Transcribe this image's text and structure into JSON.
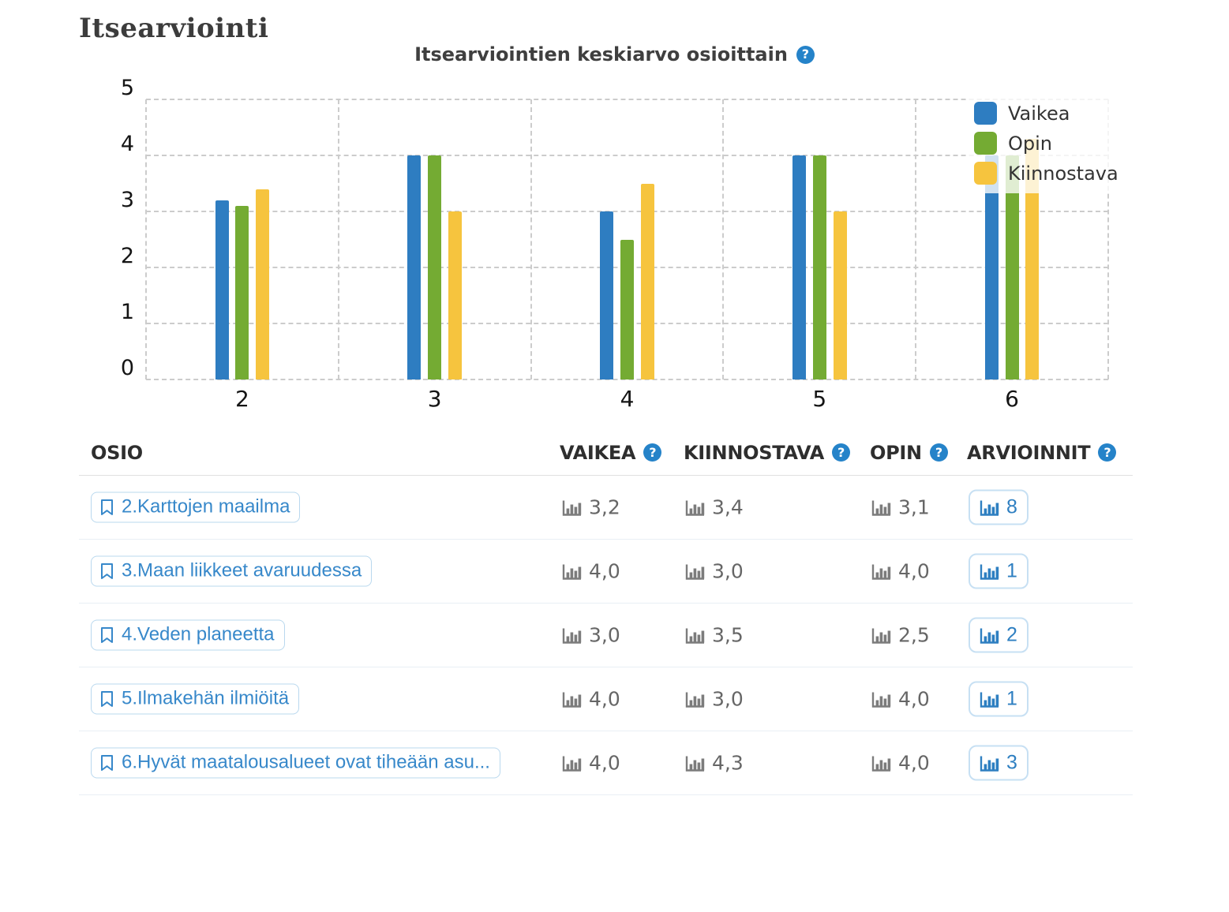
{
  "page": {
    "title": "Itsearviointi"
  },
  "chart_data": {
    "type": "bar",
    "title": "Itsearviointien keskiarvo osioittain",
    "categories": [
      "2",
      "3",
      "4",
      "5",
      "6"
    ],
    "series": [
      {
        "name": "Vaikea",
        "color": "#2e7dc1",
        "values": [
          3.2,
          4.0,
          3.0,
          4.0,
          4.0
        ]
      },
      {
        "name": "Opin",
        "color": "#74ab33",
        "values": [
          3.1,
          4.0,
          2.5,
          4.0,
          4.0
        ]
      },
      {
        "name": "Kiinnostava",
        "color": "#f6c43e",
        "values": [
          3.4,
          3.0,
          3.5,
          3.0,
          4.3
        ]
      }
    ],
    "xlabel": "",
    "ylabel": "",
    "ylim": [
      0,
      5
    ],
    "yticks": [
      0,
      1,
      2,
      3,
      4,
      5
    ],
    "grid": "dashed",
    "legend_position": "top-right-overlay"
  },
  "table": {
    "headers": {
      "osio": "OSIO",
      "vaikea": "VAIKEA",
      "kiinnostava": "KIINNOSTAVA",
      "opin": "OPIN",
      "arvioinnit": "ARVIOINNIT"
    },
    "rows": [
      {
        "label": "2.Karttojen maailma",
        "vaikea": "3,2",
        "kiinnostava": "3,4",
        "opin": "3,1",
        "arvioinnit": "8"
      },
      {
        "label": "3.Maan liikkeet avaruudessa",
        "vaikea": "4,0",
        "kiinnostava": "3,0",
        "opin": "4,0",
        "arvioinnit": "1"
      },
      {
        "label": "4.Veden planeetta",
        "vaikea": "3,0",
        "kiinnostava": "3,5",
        "opin": "2,5",
        "arvioinnit": "2"
      },
      {
        "label": "5.Ilmakehän ilmiöitä",
        "vaikea": "4,0",
        "kiinnostava": "3,0",
        "opin": "4,0",
        "arvioinnit": "1"
      },
      {
        "label": "6.Hyvät maatalousalueet ovat tiheään asu...",
        "vaikea": "4,0",
        "kiinnostava": "4,3",
        "opin": "4,0",
        "arvioinnit": "3"
      }
    ]
  },
  "icons": {
    "help": "question-mark-circle-icon",
    "help_glyph": "?",
    "bookmark": "bookmark-outline-icon",
    "stats": "bar-chart-icon"
  },
  "colors": {
    "series_vaikea": "#2e7dc1",
    "series_opin": "#74ab33",
    "series_kiinnostava": "#f6c43e",
    "help_icon_bg": "#2583c9",
    "link_blue": "#3788ca",
    "value_text": "#666666",
    "grid_line": "#cccccc"
  }
}
